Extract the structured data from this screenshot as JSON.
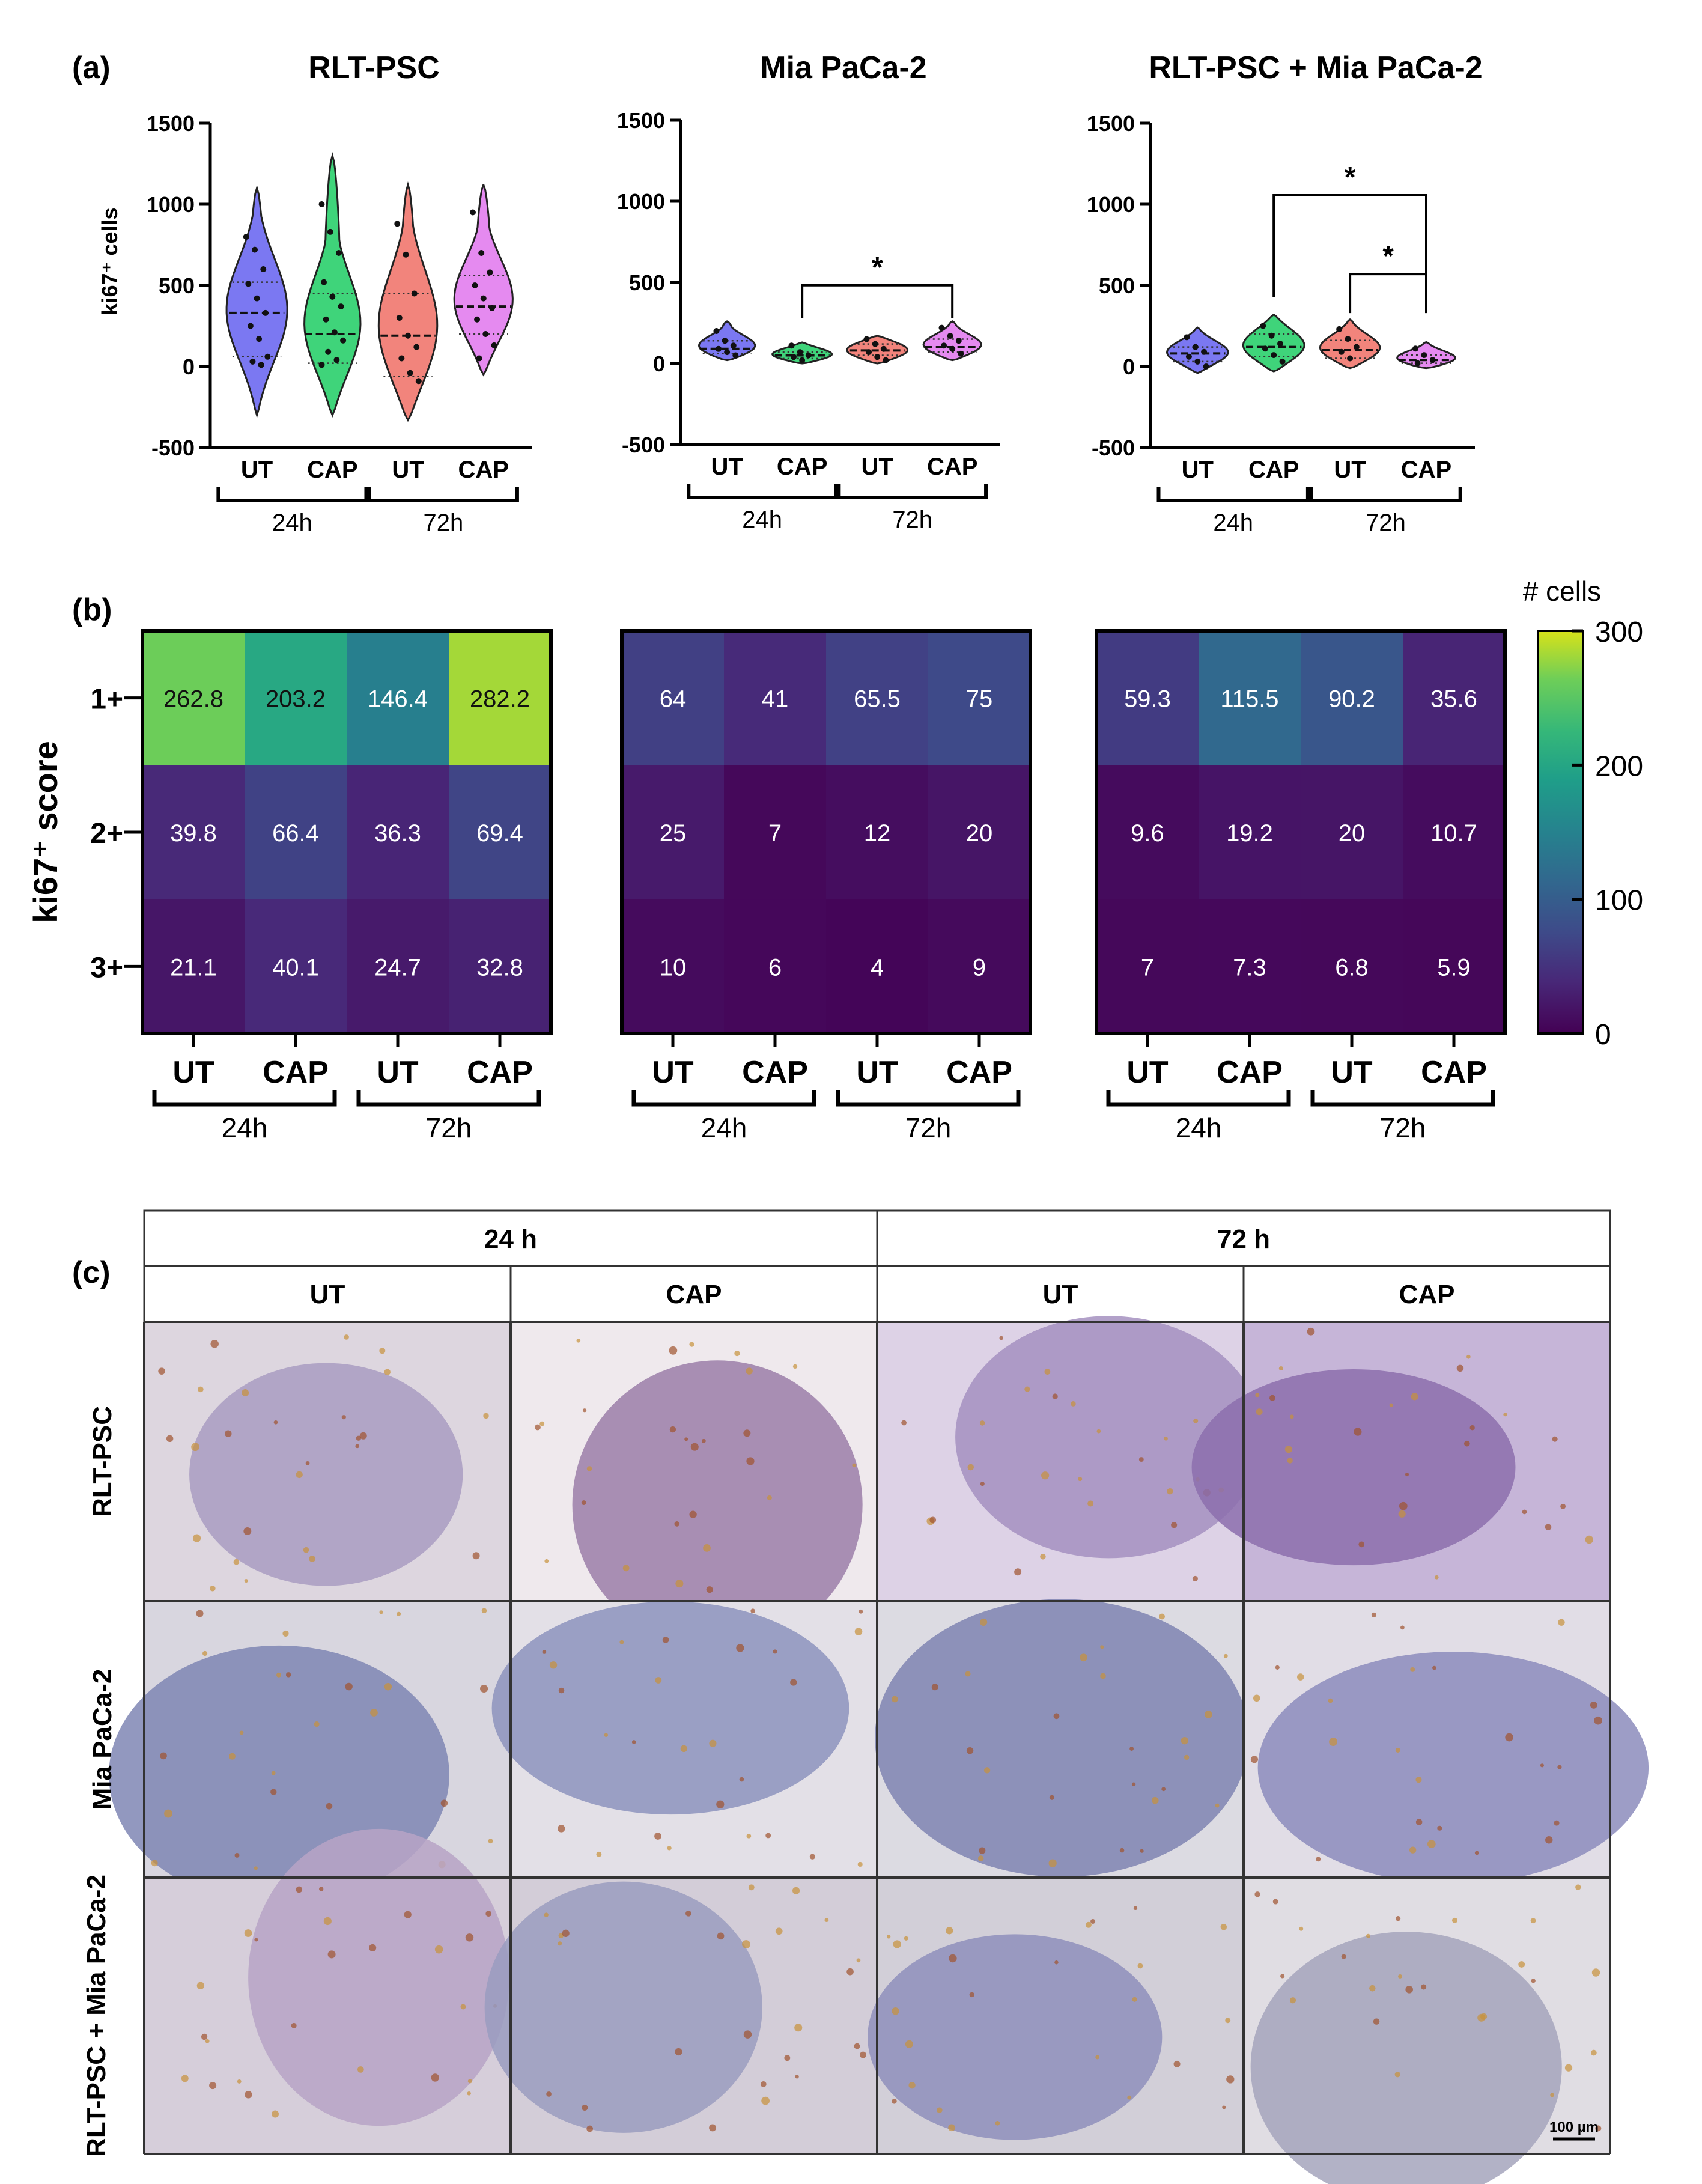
{
  "panel_labels": {
    "a": "(a)",
    "b": "(b)",
    "c": "(c)"
  },
  "groups": [
    "UT",
    "CAP",
    "UT",
    "CAP"
  ],
  "timepoints": [
    "24h",
    "72h"
  ],
  "colors": {
    "UT24": "#7b78f2",
    "CAP24": "#3fd47a",
    "UT72": "#f2847c",
    "CAP72": "#e58af0"
  },
  "chart_data": [
    {
      "type": "violin",
      "title": "RLT-PSC",
      "ylabel": "ki67⁺ cells",
      "ylim": [
        -500,
        1500
      ],
      "yticks": [
        1500,
        1000,
        500,
        0,
        -500
      ],
      "categories": [
        "UT",
        "CAP",
        "UT",
        "CAP"
      ],
      "time_groups": [
        "24h",
        "72h"
      ],
      "series": [
        {
          "name": "UT 24h",
          "median": 330,
          "q1": 60,
          "q3": 520,
          "min": -300,
          "max": 1100,
          "points": [
            800,
            720,
            600,
            510,
            420,
            330,
            250,
            170,
            60,
            30,
            10
          ]
        },
        {
          "name": "CAP 24h",
          "median": 200,
          "q1": 20,
          "q3": 450,
          "min": -300,
          "max": 1300,
          "points": [
            1000,
            830,
            700,
            520,
            430,
            370,
            290,
            210,
            160,
            90,
            40,
            10
          ]
        },
        {
          "name": "UT 72h",
          "median": 190,
          "q1": -60,
          "q3": 450,
          "min": -330,
          "max": 1120,
          "points": [
            880,
            690,
            450,
            300,
            190,
            120,
            50,
            -40,
            -90
          ]
        },
        {
          "name": "CAP 72h",
          "median": 370,
          "q1": 200,
          "q3": 560,
          "min": -50,
          "max": 1120,
          "points": [
            950,
            700,
            580,
            500,
            420,
            360,
            290,
            200,
            130,
            50
          ]
        }
      ],
      "significance": []
    },
    {
      "type": "violin",
      "title": "Mia PaCa-2",
      "ylim": [
        -500,
        1500
      ],
      "yticks": [
        1500,
        1000,
        500,
        0,
        -500
      ],
      "categories": [
        "UT",
        "CAP",
        "UT",
        "CAP"
      ],
      "time_groups": [
        "24h",
        "72h"
      ],
      "series": [
        {
          "name": "UT 24h",
          "median": 90,
          "q1": 60,
          "q3": 140,
          "min": 20,
          "max": 260,
          "points": [
            200,
            140,
            110,
            90,
            70,
            50
          ]
        },
        {
          "name": "CAP 24h",
          "median": 50,
          "q1": 30,
          "q3": 70,
          "min": 0,
          "max": 130,
          "points": [
            110,
            70,
            50,
            40,
            20
          ]
        },
        {
          "name": "UT 72h",
          "median": 80,
          "q1": 50,
          "q3": 120,
          "min": 0,
          "max": 170,
          "points": [
            150,
            120,
            90,
            70,
            40,
            20
          ]
        },
        {
          "name": "CAP 72h",
          "median": 100,
          "q1": 70,
          "q3": 150,
          "min": 20,
          "max": 260,
          "points": [
            220,
            170,
            140,
            110,
            90,
            60
          ]
        }
      ],
      "significance": [
        {
          "from": 1,
          "to": 3,
          "label": "*"
        }
      ]
    },
    {
      "type": "violin",
      "title": "RLT-PSC + Mia PaCa-2",
      "ylim": [
        -500,
        1500
      ],
      "yticks": [
        1500,
        1000,
        500,
        0,
        -500
      ],
      "categories": [
        "UT",
        "CAP",
        "UT",
        "CAP"
      ],
      "time_groups": [
        "24h",
        "72h"
      ],
      "series": [
        {
          "name": "UT 24h",
          "median": 80,
          "q1": 30,
          "q3": 120,
          "min": -40,
          "max": 240,
          "points": [
            180,
            120,
            90,
            60,
            30,
            0
          ]
        },
        {
          "name": "CAP 24h",
          "median": 120,
          "q1": 60,
          "q3": 200,
          "min": -30,
          "max": 320,
          "points": [
            250,
            190,
            140,
            110,
            70,
            30
          ]
        },
        {
          "name": "UT 72h",
          "median": 100,
          "q1": 50,
          "q3": 160,
          "min": -10,
          "max": 290,
          "points": [
            230,
            170,
            120,
            90,
            50
          ]
        },
        {
          "name": "CAP 72h",
          "median": 40,
          "q1": 20,
          "q3": 70,
          "min": -10,
          "max": 150,
          "points": [
            110,
            70,
            40,
            20
          ]
        }
      ],
      "significance": [
        {
          "from": 1,
          "to": 3,
          "label": "*",
          "level": 2
        },
        {
          "from": 2,
          "to": 3,
          "label": "*",
          "level": 1
        }
      ]
    },
    {
      "type": "heatmap",
      "ylabel": "ki67⁺ score",
      "rows": [
        "1+",
        "2+",
        "3+"
      ],
      "columns": [
        "UT",
        "CAP",
        "UT",
        "CAP"
      ],
      "time_groups": [
        "24h",
        "72h"
      ],
      "colorbar": {
        "label": "# cells",
        "min": 0,
        "max": 300,
        "ticks": [
          300,
          200,
          100,
          0
        ]
      },
      "panels": [
        {
          "name": "RLT-PSC",
          "values": [
            [
              262.8,
              203.2,
              146.4,
              282.2
            ],
            [
              39.8,
              66.4,
              36.3,
              69.4
            ],
            [
              21.1,
              40.1,
              24.7,
              32.8
            ]
          ]
        },
        {
          "name": "Mia PaCa-2",
          "values": [
            [
              64.0,
              41.0,
              65.5,
              75.0
            ],
            [
              25.0,
              7.0,
              12.0,
              20.0
            ],
            [
              10.0,
              6.0,
              4.0,
              9.0
            ]
          ]
        },
        {
          "name": "RLT-PSC + Mia PaCa-2",
          "values": [
            [
              59.3,
              115.5,
              90.2,
              35.6
            ],
            [
              9.6,
              19.2,
              20.0,
              10.7
            ],
            [
              7.0,
              7.3,
              6.8,
              5.9
            ]
          ]
        }
      ]
    },
    {
      "type": "table",
      "header_top": [
        "24 h",
        "72 h"
      ],
      "header_sub": [
        "UT",
        "CAP",
        "UT",
        "CAP"
      ],
      "row_labels": [
        "RLT-PSC",
        "Mia PaCa-2",
        "RLT-PSC + Mia PaCa-2"
      ],
      "scale_bar": "100 µm"
    }
  ]
}
